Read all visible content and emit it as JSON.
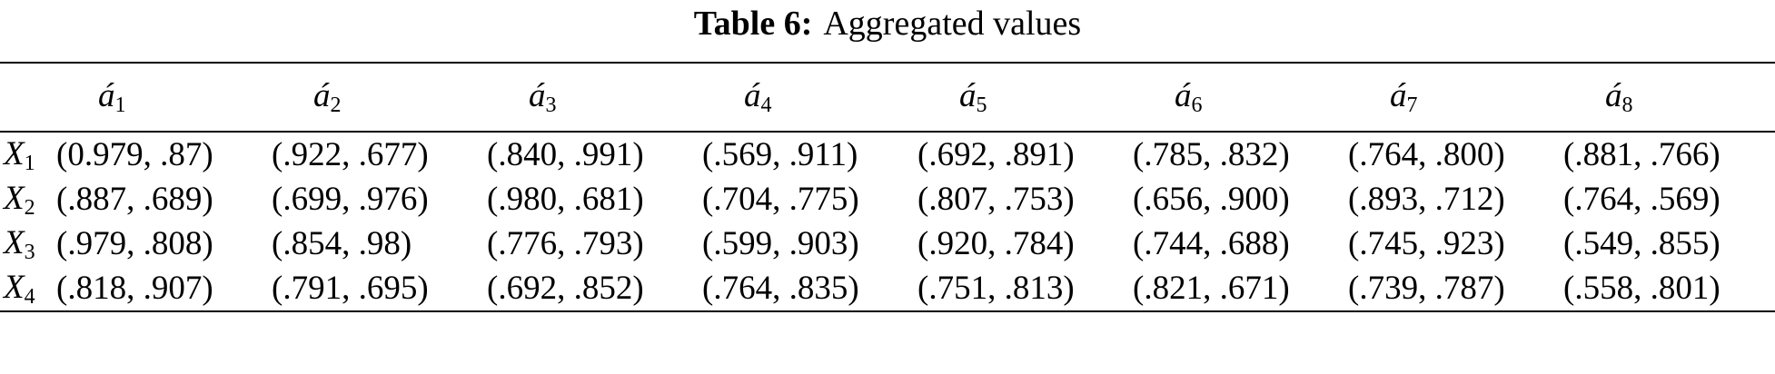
{
  "caption": {
    "label": "Table 6:",
    "text": "Aggregated values"
  },
  "table": {
    "header": [
      {
        "base": "á",
        "sub": "1"
      },
      {
        "base": "á",
        "sub": "2"
      },
      {
        "base": "á",
        "sub": "3"
      },
      {
        "base": "á",
        "sub": "4"
      },
      {
        "base": "á",
        "sub": "5"
      },
      {
        "base": "á",
        "sub": "6"
      },
      {
        "base": "á",
        "sub": "7"
      },
      {
        "base": "á",
        "sub": "8"
      }
    ],
    "rows": [
      {
        "label": {
          "base": "X",
          "sub": "1"
        },
        "cells": [
          "(0.979, .87)",
          "(.922, .677)",
          "(.840, .991)",
          "(.569, .911)",
          "(.692, .891)",
          "(.785, .832)",
          "(.764, .800)",
          "(.881, .766)"
        ]
      },
      {
        "label": {
          "base": "X",
          "sub": "2"
        },
        "cells": [
          "(.887, .689)",
          "(.699, .976)",
          "(.980, .681)",
          "(.704, .775)",
          "(.807, .753)",
          "(.656, .900)",
          "(.893, .712)",
          "(.764, .569)"
        ]
      },
      {
        "label": {
          "base": "X",
          "sub": "3"
        },
        "cells": [
          "(.979, .808)",
          "(.854, .98)",
          "(.776, .793)",
          "(.599, .903)",
          "(.920, .784)",
          "(.744, .688)",
          "(.745, .923)",
          "(.549, .855)"
        ]
      },
      {
        "label": {
          "base": "X",
          "sub": "4"
        },
        "cells": [
          "(.818, .907)",
          "(.791, .695)",
          "(.692, .852)",
          "(.764, .835)",
          "(.751, .813)",
          "(.821, .671)",
          "(.739, .787)",
          "(.558, .801)"
        ]
      }
    ]
  }
}
